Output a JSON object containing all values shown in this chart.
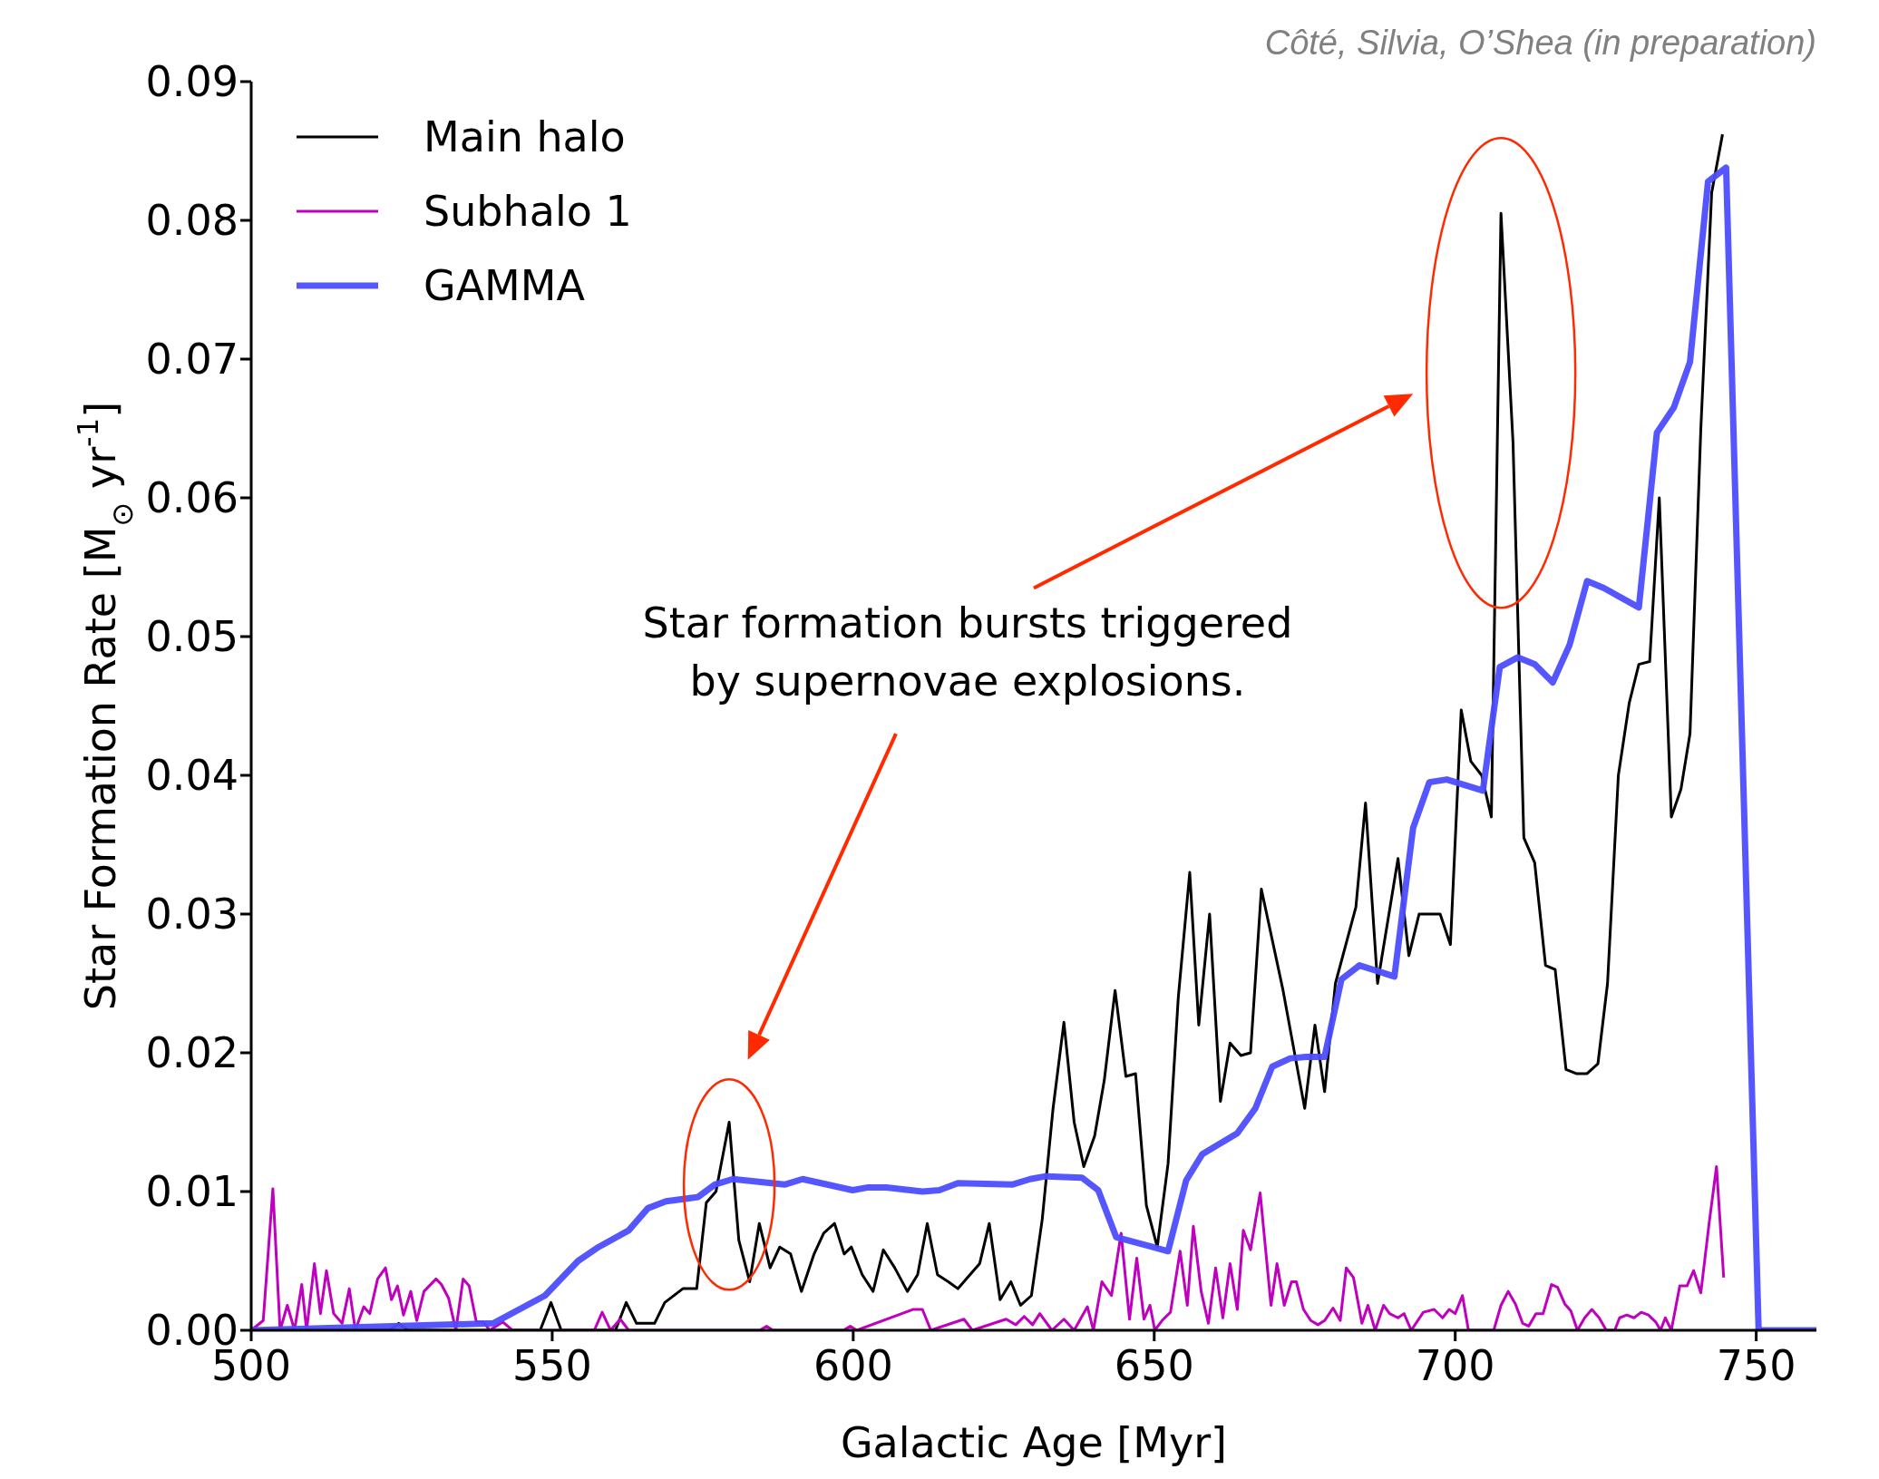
{
  "chart_data": {
    "type": "line",
    "xlabel": "Galactic Age [Myr]",
    "ylabel": "Star Formation Rate [M$_{⊙}$ yr$^{-1}$]",
    "xlim": [
      500,
      760
    ],
    "xticks": [
      500,
      550,
      600,
      650,
      700,
      750
    ],
    "ylim": [
      0,
      0.09
    ],
    "yticks": [
      {
        "value": 0,
        "label": "0.00"
      },
      {
        "value": 0.01,
        "label": "0.01"
      },
      {
        "value": 0.02,
        "label": "0.02"
      },
      {
        "value": 0.03,
        "label": "0.03"
      },
      {
        "value": 0.04,
        "label": "0.04"
      },
      {
        "value": 0.05,
        "label": "0.05"
      },
      {
        "value": 0.06,
        "label": "0.06"
      },
      {
        "value": 0.07,
        "label": "0.07"
      },
      {
        "value": 0.08,
        "label": "0.08"
      },
      {
        "value": 0.09,
        "label": "0.09"
      }
    ],
    "legend": "top left",
    "marker": "none",
    "line_style": "solid",
    "annotations": [
      "Côté, Silvia, O’Shea (in preparation)",
      "Star formation bursts triggered by supernovae explosions."
    ],
    "series": [
      {
        "name": "Main halo",
        "color": "#000000",
        "x": [
          520,
          523,
          524.5,
          526,
          548,
          549.8,
          551.5,
          560.5,
          562.3,
          564,
          567,
          568.7,
          571.7,
          574,
          575.6,
          577.2,
          579.4,
          581,
          582.8,
          584.4,
          586.2,
          587.8,
          589.6,
          591.4,
          593.5,
          595.1,
          596.9,
          598.5,
          599.7,
          601.5,
          603.3,
          605,
          606.9,
          609,
          610.7,
          612.3,
          614,
          615.8,
          617.4,
          621,
          622.6,
          624.4,
          626.2,
          627.8,
          629.6,
          631.4,
          633.2,
          635,
          636.7,
          638.3,
          640.1,
          641.7,
          643.5,
          645.3,
          646.9,
          648.7,
          650.5,
          652.3,
          654,
          655.9,
          657.4,
          659.2,
          661,
          662.6,
          664.4,
          666,
          667.8,
          671.4,
          675,
          676.7,
          678.3,
          680.1,
          683.5,
          685.1,
          687.1,
          690.5,
          692.3,
          694,
          697.5,
          699.2,
          701,
          702.6,
          704.4,
          706,
          707.6,
          709.6,
          711.4,
          713.2,
          715,
          716.6,
          718.4,
          720.1,
          721.9,
          723.7,
          725.3,
          727.1,
          728.9,
          730.5,
          732.3,
          733.9,
          735.9,
          737.5,
          739,
          740.8,
          742.6,
          744.4
        ],
        "values": [
          0,
          0,
          0.0005,
          0,
          0,
          0.002,
          0,
          0,
          0.002,
          0.0005,
          0.0005,
          0.002,
          0.003,
          0.003,
          0.0092,
          0.01,
          0.015,
          0.0065,
          0.0035,
          0.0077,
          0.0045,
          0.006,
          0.0055,
          0.0028,
          0.0055,
          0.007,
          0.0077,
          0.0055,
          0.006,
          0.004,
          0.0028,
          0.0058,
          0.0045,
          0.0028,
          0.004,
          0.0077,
          0.004,
          0.0035,
          0.003,
          0.0048,
          0.0077,
          0.0022,
          0.0035,
          0.0018,
          0.0025,
          0.008,
          0.016,
          0.0222,
          0.015,
          0.0118,
          0.014,
          0.018,
          0.0245,
          0.0183,
          0.0185,
          0.009,
          0.006,
          0.012,
          0.024,
          0.033,
          0.022,
          0.03,
          0.0165,
          0.0207,
          0.0198,
          0.02,
          0.0318,
          0.0245,
          0.016,
          0.022,
          0.0172,
          0.025,
          0.0305,
          0.038,
          0.025,
          0.034,
          0.027,
          0.03,
          0.03,
          0.0278,
          0.0447,
          0.041,
          0.04,
          0.037,
          0.0805,
          0.064,
          0.0355,
          0.0337,
          0.0263,
          0.026,
          0.0188,
          0.0185,
          0.0185,
          0.0192,
          0.025,
          0.04,
          0.0452,
          0.048,
          0.0482,
          0.06,
          0.037,
          0.039,
          0.043,
          0.065,
          0.082,
          0.0862
        ]
      },
      {
        "name": "Subhalo 1",
        "color": "#bf00bf",
        "x": [
          500,
          502,
          503.6,
          504.8,
          506,
          507.2,
          508.4,
          509.2,
          510.5,
          511.5,
          512.5,
          513.7,
          515.1,
          516.3,
          517.3,
          518.7,
          519.7,
          521,
          522.3,
          523.3,
          524.3,
          525.3,
          526.5,
          527.5,
          528.7,
          530.7,
          531.6,
          532.8,
          534,
          535.2,
          536.2,
          537.4,
          538.6,
          539.6,
          541.8,
          543.4,
          557,
          558.3,
          559.7,
          561.3,
          562.7,
          584.5,
          585.6,
          586.7,
          598.4,
          599.5,
          600.6,
          609.9,
          611.5,
          612.9,
          618.4,
          619.8,
          625.4,
          627,
          628.4,
          629.8,
          631,
          633,
          635,
          636.7,
          638.9,
          639.9,
          641.3,
          642.9,
          644.5,
          645.9,
          647.1,
          648.3,
          649.3,
          650.1,
          651.3,
          652.7,
          654.3,
          655.5,
          656.5,
          657.8,
          659,
          660.2,
          661.4,
          662.6,
          663.8,
          664.8,
          666,
          667.6,
          669.4,
          670.4,
          671.6,
          672.8,
          673.6,
          674.8,
          676,
          677.2,
          678.3,
          679.7,
          680.9,
          681.9,
          683.1,
          684.5,
          685.5,
          686.7,
          688.1,
          689.1,
          690.5,
          691.5,
          692.7,
          694.7,
          696.5,
          697.9,
          699,
          700,
          701.2,
          702.2,
          706.4,
          707.6,
          708.8,
          710,
          711.2,
          712.2,
          713.4,
          714.6,
          716,
          717,
          718.2,
          719.2,
          720.3,
          721.5,
          722.7,
          723.9,
          725.1,
          726.5,
          727.3,
          728.5,
          729.7,
          730.9,
          732.1,
          733.3,
          734.1,
          734.9,
          735.9,
          737.3,
          738.5,
          739.6,
          740.8,
          742.2,
          743.4,
          744.6
        ],
        "values": [
          0,
          0.0007,
          0.0102,
          0,
          0.0018,
          0,
          0.0033,
          0,
          0.0048,
          0.0012,
          0.0043,
          0.0012,
          0.0005,
          0.003,
          0,
          0.0017,
          0.0012,
          0.0037,
          0.0045,
          0.0022,
          0.0032,
          0.0011,
          0.0028,
          0.0007,
          0.0028,
          0.0037,
          0.0033,
          0.0023,
          0,
          0.0037,
          0.0032,
          0.0006,
          0.0006,
          0,
          0.0006,
          0,
          0,
          0.0013,
          0,
          0.0008,
          0,
          0,
          0.0003,
          0,
          0,
          0.0003,
          0,
          0.0015,
          0.0015,
          0,
          0.0008,
          0,
          0.0008,
          0.0004,
          0.001,
          0.0004,
          0.0012,
          0,
          0.0008,
          0,
          0.0017,
          0,
          0.0035,
          0.0025,
          0.007,
          0.0008,
          0.0052,
          0.0008,
          0.0018,
          0,
          0.0007,
          0.0013,
          0.0057,
          0.0018,
          0.0075,
          0.0028,
          0.0005,
          0.0045,
          0.0009,
          0.0048,
          0.0015,
          0.0072,
          0.0058,
          0.0099,
          0.0018,
          0.0048,
          0.0018,
          0.0035,
          0.0035,
          0.0015,
          0.0007,
          0.0004,
          0.0007,
          0.0016,
          0.0007,
          0.0045,
          0.0038,
          0.0005,
          0.0018,
          0,
          0.0018,
          0.0012,
          0.0009,
          0.0012,
          0,
          0.0013,
          0.0015,
          0.0009,
          0.0015,
          0.0012,
          0.0025,
          0,
          0,
          0.0018,
          0.0028,
          0.0019,
          0.0005,
          0.0003,
          0.0012,
          0.0012,
          0.0033,
          0.0031,
          0.0019,
          0.0014,
          0,
          0.0009,
          0.0015,
          0.0009,
          0,
          0,
          0.0009,
          0.0011,
          0.0009,
          0.0013,
          0.0011,
          0.0006,
          0,
          0.0009,
          0,
          0.0032,
          0.0032,
          0.0043,
          0.0027,
          0.0078,
          0.0118,
          0.0038
        ]
      },
      {
        "name": "GAMMA",
        "color": "#4d4dff",
        "x": [
          500,
          540.2,
          548.8,
          554.3,
          557.7,
          562.7,
          565.9,
          568.9,
          574.2,
          577,
          580,
          588.6,
          591.6,
          599.9,
          602.5,
          605.5,
          611.5,
          614.3,
          617.4,
          626.4,
          629.4,
          632,
          638,
          640.7,
          643.7,
          652.3,
          655.3,
          658,
          663.8,
          666.8,
          669.6,
          672.6,
          675.2,
          678.3,
          681.1,
          684.1,
          689.9,
          693,
          695.7,
          698.6,
          704.6,
          707.4,
          710.4,
          713.2,
          716.2,
          719,
          721.9,
          724.7,
          730.5,
          733.5,
          736.3,
          739,
          742,
          745,
          750.4,
          760
        ],
        "values": [
          0,
          0.0005,
          0.0025,
          0.005,
          0.006,
          0.0072,
          0.0088,
          0.0093,
          0.0096,
          0.0105,
          0.0109,
          0.0105,
          0.0109,
          0.0101,
          0.0103,
          0.0103,
          0.01,
          0.0101,
          0.0106,
          0.0105,
          0.0109,
          0.0111,
          0.011,
          0.0101,
          0.0067,
          0.0057,
          0.0108,
          0.0127,
          0.0142,
          0.016,
          0.019,
          0.0196,
          0.0197,
          0.0197,
          0.0253,
          0.0263,
          0.0255,
          0.0362,
          0.0395,
          0.0397,
          0.0389,
          0.0478,
          0.0485,
          0.048,
          0.0467,
          0.0494,
          0.054,
          0.0535,
          0.0521,
          0.0647,
          0.0665,
          0.0698,
          0.0828,
          0.0838,
          0,
          0
        ]
      }
    ]
  }
}
